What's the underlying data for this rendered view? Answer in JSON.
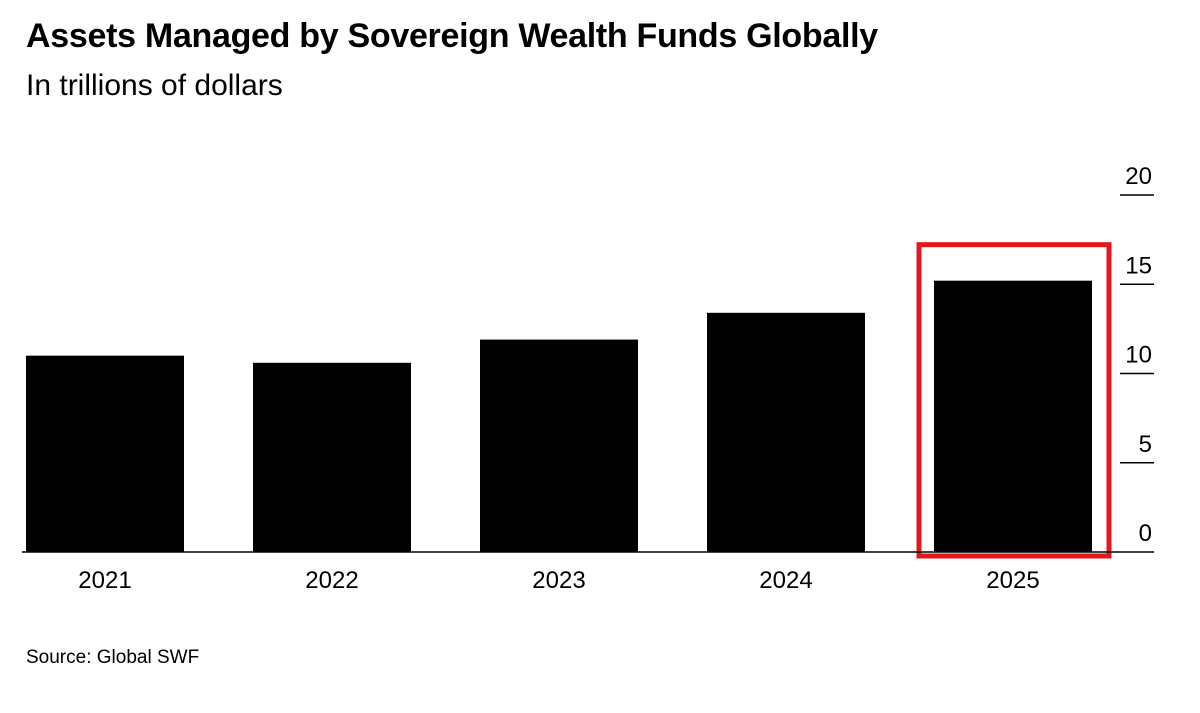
{
  "title": "Assets Managed by Sovereign Wealth Funds Globally",
  "subtitle": "In trillions of dollars",
  "source": "Source: Global SWF",
  "colors": {
    "bar": "#000000",
    "highlight": "#e0191f",
    "axis": "#000000"
  },
  "chart_data": {
    "type": "bar",
    "title": "Assets Managed by Sovereign Wealth Funds Globally",
    "subtitle": "In trillions of dollars",
    "xlabel": "",
    "ylabel": "",
    "categories": [
      "2021",
      "2022",
      "2023",
      "2024",
      "2025"
    ],
    "values": [
      11.0,
      10.6,
      11.9,
      13.4,
      15.2
    ],
    "ylim": [
      0,
      20
    ],
    "yticks": [
      0,
      5,
      10,
      15,
      20
    ],
    "ytick_labels": [
      "0",
      "5",
      "10",
      "15",
      "20"
    ],
    "y_axis_side": "right",
    "grid": false,
    "highlighted_category": "2025"
  }
}
